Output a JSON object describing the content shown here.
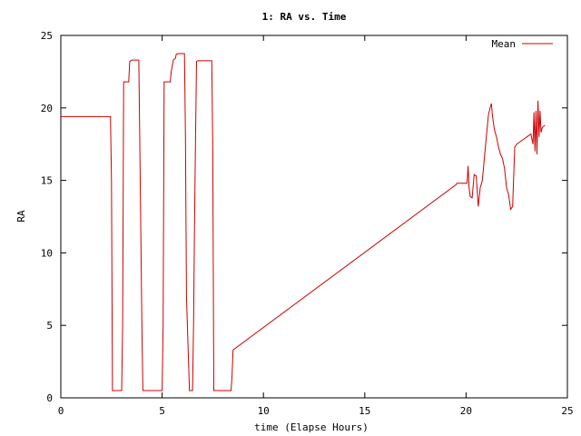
{
  "chart_data": {
    "type": "line",
    "title": "1: RA vs. Time",
    "xlabel": "time (Elapse Hours)",
    "ylabel": "RA",
    "xlim": [
      0,
      25
    ],
    "ylim": [
      0,
      25
    ],
    "xticks": [
      0,
      5,
      10,
      15,
      20,
      25
    ],
    "yticks": [
      0,
      5,
      10,
      15,
      20,
      25
    ],
    "grid": false,
    "legend": "top-right",
    "series": [
      {
        "name": "Mean",
        "color": "#cc0000",
        "x": [
          0,
          2.45,
          2.5,
          2.55,
          3.0,
          3.05,
          3.1,
          3.35,
          3.4,
          3.5,
          3.85,
          3.9,
          4.0,
          4.05,
          5.0,
          5.05,
          5.1,
          5.4,
          5.45,
          5.55,
          5.65,
          5.7,
          5.8,
          5.9,
          6.1,
          6.15,
          6.2,
          6.35,
          6.5,
          6.55,
          6.6,
          6.65,
          6.7,
          6.75,
          7.45,
          7.5,
          7.55,
          8.4,
          8.45,
          8.5,
          19.5,
          19.55,
          20.0,
          20.05,
          20.1,
          20.15,
          20.2,
          20.3,
          20.4,
          20.5,
          20.6,
          20.7,
          20.8,
          20.9,
          21.0,
          21.1,
          21.15,
          21.2,
          21.25,
          21.3,
          21.4,
          21.5,
          21.6,
          21.7,
          21.8,
          21.9,
          22.0,
          22.1,
          22.2,
          22.3,
          22.4,
          22.5,
          22.6,
          22.7,
          22.8,
          23.0,
          23.2,
          23.3,
          23.35,
          23.4,
          23.45,
          23.5,
          23.55,
          23.6,
          23.65,
          23.7,
          23.75,
          23.8,
          23.9
        ],
        "y": [
          19.4,
          19.4,
          15,
          0.5,
          0.5,
          5,
          21.8,
          21.8,
          23.2,
          23.3,
          23.3,
          17.5,
          5,
          0.5,
          0.5,
          5,
          21.8,
          21.8,
          22.5,
          23.3,
          23.4,
          23.7,
          23.75,
          23.75,
          23.75,
          18,
          7,
          0.5,
          0.5,
          5,
          12,
          18,
          23.2,
          23.25,
          23.25,
          17,
          0.5,
          0.5,
          1.5,
          3.3,
          14.7,
          14.8,
          14.8,
          14.8,
          16.0,
          14.5,
          13.9,
          13.8,
          15.4,
          15.3,
          13.2,
          14.5,
          15.0,
          16.5,
          18.0,
          19.5,
          19.8,
          20.1,
          20.3,
          19.5,
          18.5,
          18.0,
          17.3,
          16.8,
          16.5,
          15.8,
          14.5,
          14.0,
          13.0,
          13.2,
          17.3,
          17.5,
          17.6,
          17.7,
          17.8,
          18.0,
          18.2,
          17.5,
          19.7,
          17.0,
          19.8,
          16.8,
          20.5,
          18.0,
          19.8,
          18.3,
          18.6,
          18.7,
          18.8
        ]
      }
    ]
  }
}
